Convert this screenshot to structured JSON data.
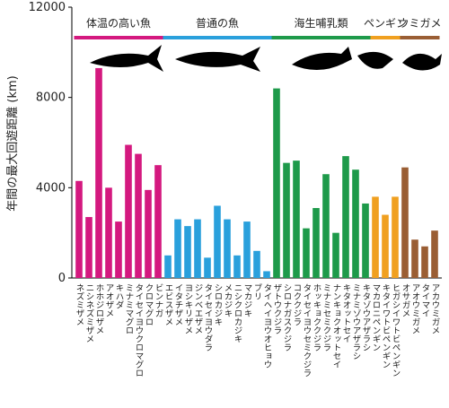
{
  "chart_data": {
    "type": "bar",
    "y_label": "年間の最大回遊距離 (km)",
    "ylim": [
      0,
      12000
    ],
    "yticks": [
      0,
      4000,
      8000,
      12000
    ],
    "groups": [
      {
        "name": "体温の高い魚",
        "color": "#d4197f",
        "categories": [
          "ネズミザメ",
          "ニシネズミザメ",
          "ホホジロザメ",
          "アオザメ",
          "キハダ",
          "ミナミマグロ",
          "タイセイヨウクロマグロ",
          "クロマグロ",
          "ビンナガ"
        ],
        "values": [
          4300,
          2700,
          9300,
          4000,
          2500,
          5900,
          5500,
          3900,
          5000
        ]
      },
      {
        "name": "普通の魚",
        "color": "#2aa0dc",
        "categories": [
          "エビスザメ",
          "イタチザメ",
          "ヨシキリザメ",
          "ジンベエザメ",
          "タイセイヨウダラ",
          "シロカジキ",
          "メカジキ",
          "ニシクロカジキ",
          "マカジキ",
          "ブリ",
          "タイヘイヨウオヒョウ"
        ],
        "values": [
          1000,
          2600,
          2300,
          2600,
          900,
          3200,
          2600,
          1000,
          2500,
          1200,
          300
        ]
      },
      {
        "name": "海生哺乳類",
        "color": "#1e9a4a",
        "categories": [
          "ザトウクジラ",
          "シロナガスクジラ",
          "コククジラ",
          "タイセイヨウセミクジラ",
          "ホッキョククジラ",
          "ミナミセミクジラ",
          "ナンキョクオットセイ",
          "キタオットセイ",
          "ミナミゾウアザラシ",
          "キタゾウアザラシ"
        ],
        "values": [
          8400,
          5100,
          5200,
          2200,
          3100,
          4600,
          2000,
          5400,
          4800,
          3300
        ]
      },
      {
        "name": "ペンギン",
        "color": "#f0a020",
        "categories": [
          "マカロニペンギン",
          "キタイワトビペンギン",
          "ヒガシイワトビペンギン"
        ],
        "values": [
          3600,
          2800,
          3600
        ]
      },
      {
        "name": "ウミガメ",
        "color": "#9a5e34",
        "categories": [
          "オサガメ",
          "アオウミガメ",
          "タイマイ",
          "アカウミガメ"
        ],
        "values": [
          4900,
          1700,
          1400,
          2100
        ]
      }
    ]
  }
}
